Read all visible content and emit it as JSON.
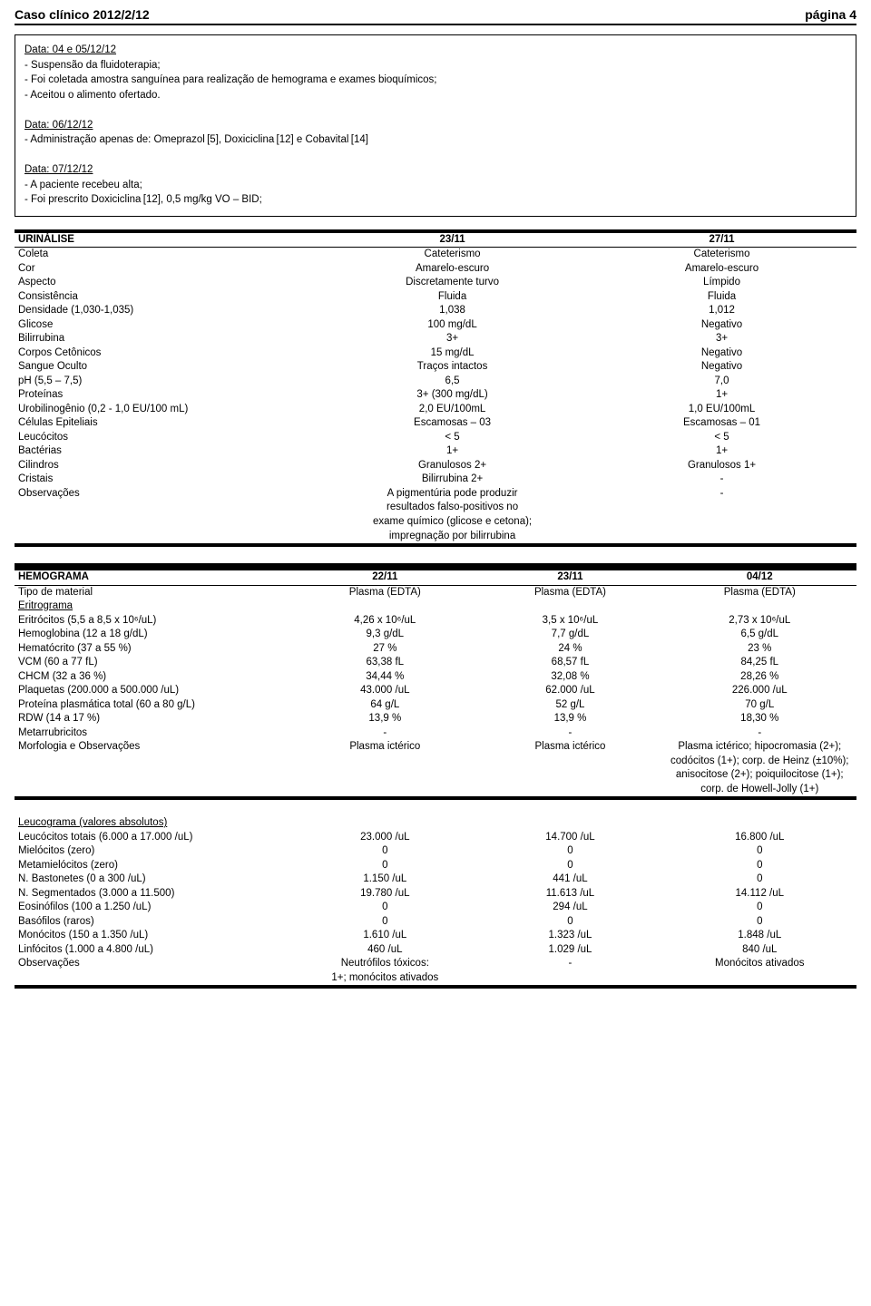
{
  "header": {
    "left": "Caso clínico 2012/2/12",
    "right": "página 4"
  },
  "box": {
    "d1_title": "Data: 04 e 05/12/12",
    "d1_l1": "- Suspensão da fluidoterapia;",
    "d1_l2": "- Foi coletada amostra sanguínea para realização de hemograma e exames bioquímicos;",
    "d1_l3": "- Aceitou o alimento ofertado.",
    "d2_title": "Data: 06/12/12",
    "d2_l1": "- Administração apenas de: Omeprazol [5], Doxiciclina [12] e Cobavital [14]",
    "d3_title": "Data: 07/12/12",
    "d3_l1": "- A paciente recebeu alta;",
    "d3_l2": "- Foi prescrito Doxiciclina [12], 0,5 mg/kg VO – BID;"
  },
  "urinalise": {
    "title": "URINÁLISE",
    "c2": "23/11",
    "c3": "27/11",
    "rows": [
      [
        "Coleta",
        "Cateterismo",
        "Cateterismo"
      ],
      [
        "Cor",
        "Amarelo-escuro",
        "Amarelo-escuro"
      ],
      [
        "Aspecto",
        "Discretamente turvo",
        "Límpido"
      ],
      [
        "Consistência",
        "Fluida",
        "Fluida"
      ],
      [
        "Densidade (1,030-1,035)",
        "1,038",
        "1,012"
      ],
      [
        "Glicose",
        "100 mg/dL",
        "Negativo"
      ],
      [
        "Bilirrubina",
        "3+",
        "3+"
      ],
      [
        "Corpos Cetônicos",
        "15 mg/dL",
        "Negativo"
      ],
      [
        "Sangue Oculto",
        "Traços intactos",
        "Negativo"
      ],
      [
        "pH (5,5 – 7,5)",
        "6,5",
        "7,0"
      ],
      [
        "Proteínas",
        "3+ (300 mg/dL)",
        "1+"
      ],
      [
        "Urobilinogênio (0,2 - 1,0 EU/100 mL)",
        "2,0 EU/100mL",
        "1,0 EU/100mL"
      ],
      [
        "Células Epiteliais",
        "Escamosas – 03",
        "Escamosas – 01"
      ],
      [
        "Leucócitos",
        "< 5",
        "< 5"
      ],
      [
        "Bactérias",
        "1+",
        "1+"
      ],
      [
        "Cilindros",
        "Granulosos 2+",
        "Granulosos 1+"
      ],
      [
        "Cristais",
        "Bilirrubina 2+",
        "-"
      ],
      [
        "Observações",
        "A pigmentúria pode produzir\nresultados falso-positivos no\nexame químico (glicose e cetona);\nimpregnação por bilirrubina",
        "-"
      ]
    ]
  },
  "hemograma": {
    "title": "HEMOGRAMA",
    "c2": "22/11",
    "c3": "23/11",
    "c4": "04/12",
    "rows": [
      [
        "Tipo de material",
        "Plasma (EDTA)",
        "Plasma (EDTA)",
        "Plasma (EDTA)"
      ],
      [
        "__u__Eritrograma",
        "",
        "",
        ""
      ],
      [
        "Eritrócitos (5,5 a 8,5 x 10⁶/uL)",
        "4,26 x 10⁶/uL",
        "3,5 x 10⁶/uL",
        "2,73 x 10⁶/uL"
      ],
      [
        "Hemoglobina (12 a 18 g/dL)",
        "9,3 g/dL",
        "7,7 g/dL",
        "6,5 g/dL"
      ],
      [
        "Hematócrito (37 a 55 %)",
        "27 %",
        "24 %",
        "23 %"
      ],
      [
        "VCM (60 a 77 fL)",
        "63,38 fL",
        "68,57 fL",
        "84,25 fL"
      ],
      [
        "CHCM (32 a 36 %)",
        "34,44 %",
        "32,08 %",
        "28,26 %"
      ],
      [
        "Plaquetas (200.000 a 500.000 /uL)",
        "43.000 /uL",
        "62.000 /uL",
        "226.000 /uL"
      ],
      [
        "Proteína plasmática total (60 a 80 g/L)",
        "64 g/L",
        "52 g/L",
        "70 g/L"
      ],
      [
        "RDW (14 a 17 %)",
        "13,9 %",
        "13,9 %",
        "18,30 %"
      ],
      [
        "Metarrubricitos",
        "-",
        "-",
        "-"
      ],
      [
        "Morfologia e Observações",
        "Plasma ictérico",
        "Plasma ictérico",
        "Plasma ictérico; hipocromasia (2+); codócitos (1+); corp. de Heinz (±10%); anisocitose (2+); poiquilocitose (1+); corp. de Howell-Jolly (1+)"
      ]
    ]
  },
  "leuco": {
    "subtitle": "Leucograma (valores absolutos)",
    "rows": [
      [
        "Leucócitos totais (6.000 a 17.000 /uL)",
        "23.000 /uL",
        "14.700 /uL",
        "16.800 /uL"
      ],
      [
        "Mielócitos (zero)",
        "0",
        "0",
        "0"
      ],
      [
        "Metamielócitos (zero)",
        "0",
        "0",
        "0"
      ],
      [
        "N. Bastonetes (0 a 300 /uL)",
        "1.150 /uL",
        "441 /uL",
        "0"
      ],
      [
        "N. Segmentados (3.000 a 11.500)",
        "19.780 /uL",
        "11.613 /uL",
        "14.112 /uL"
      ],
      [
        "Eosinófilos (100 a 1.250 /uL)",
        "0",
        "294 /uL",
        "0"
      ],
      [
        "Basófilos (raros)",
        "0",
        "0",
        "0"
      ],
      [
        "Monócitos (150 a 1.350 /uL)",
        "1.610 /uL",
        "1.323 /uL",
        "1.848 /uL"
      ],
      [
        "Linfócitos (1.000 a 4.800 /uL)",
        "460 /uL",
        "1.029 /uL",
        "840 /uL"
      ],
      [
        "Observações",
        "Neutrófilos tóxicos:\n1+; monócitos ativados",
        "-",
        "Monócitos ativados"
      ]
    ]
  }
}
